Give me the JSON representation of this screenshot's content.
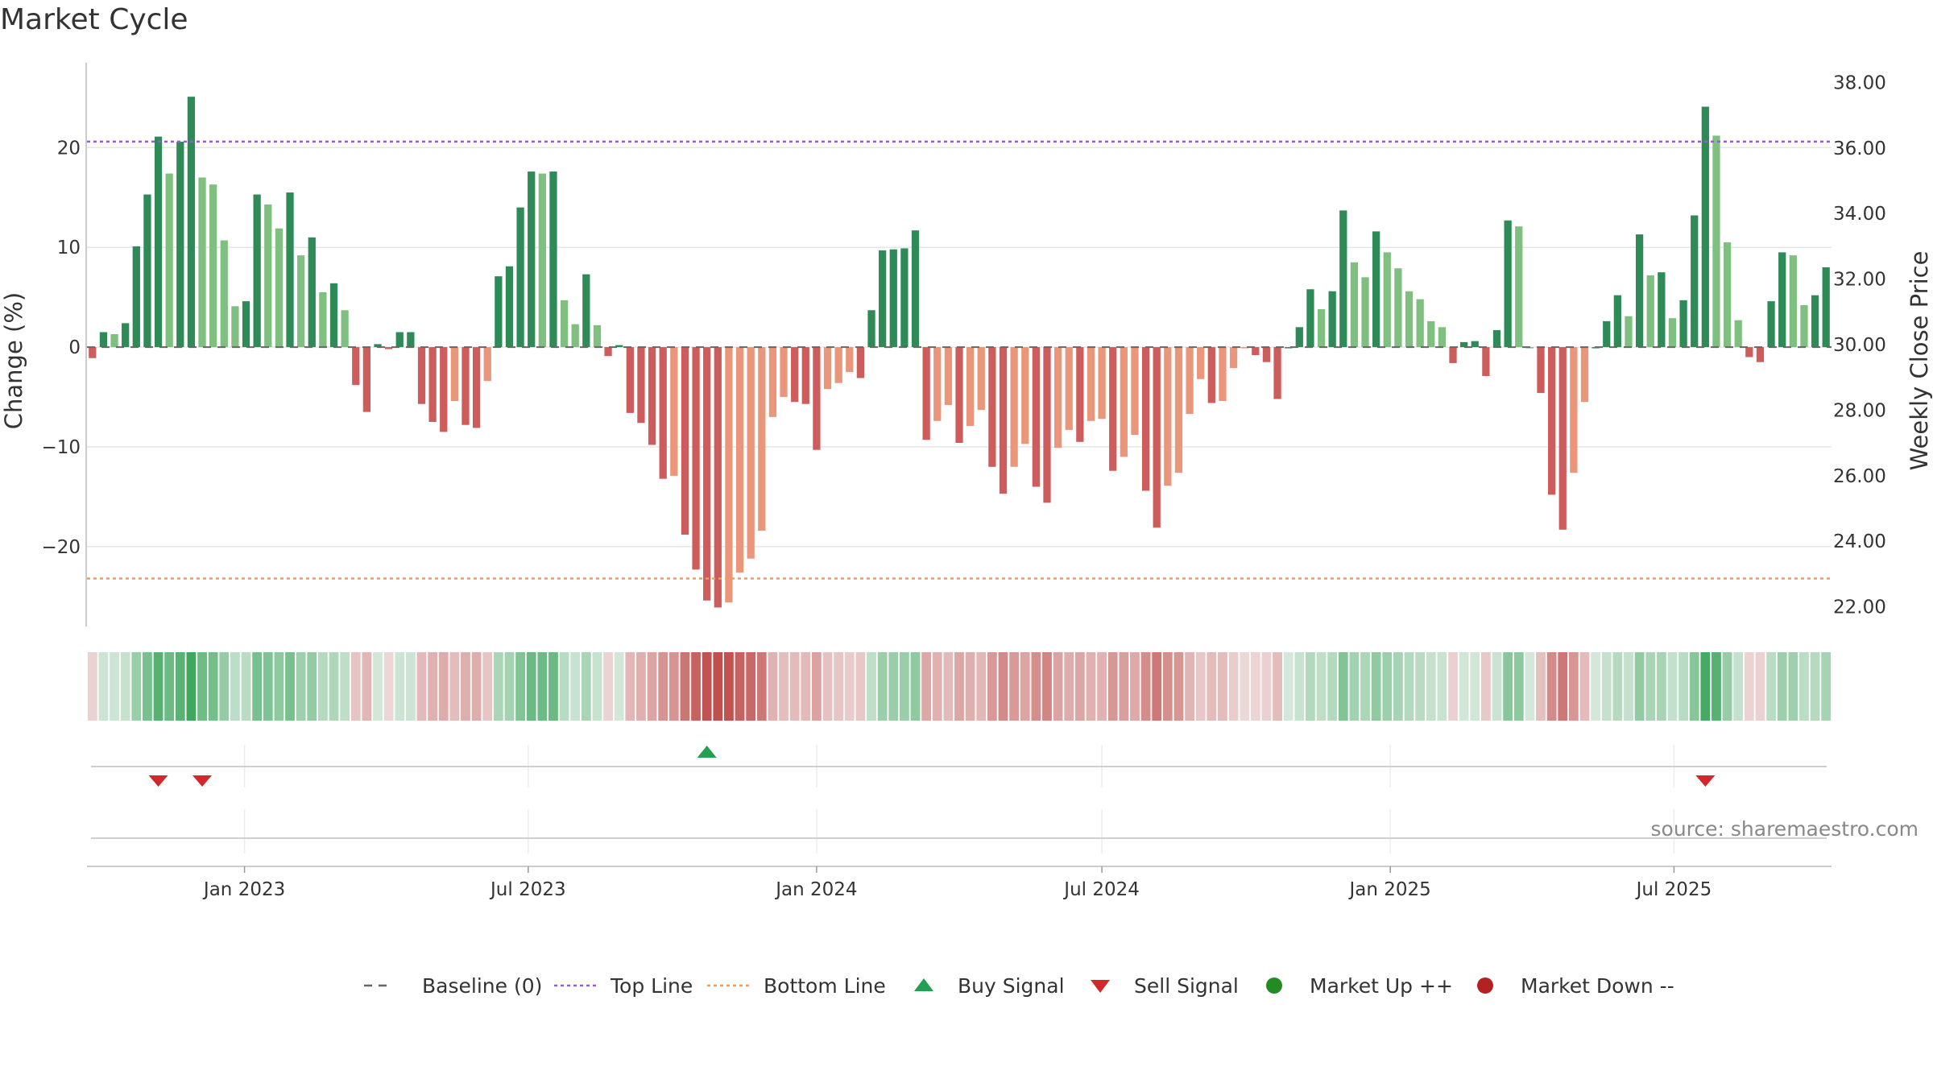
{
  "title": "Market Cycle",
  "source": "source: sharemaestro.com",
  "colors": {
    "up_strong": "#2e8b57",
    "up_light": "#7fbf7f",
    "down_strong": "#cd5c5c",
    "down_light": "#e9967a",
    "top_line": "#9b59d6",
    "bottom_line": "#e8a060",
    "baseline": "#666666",
    "buy": "#22a050",
    "sell": "#d62728",
    "market_up": "#228b22",
    "market_down": "#b22222"
  },
  "chart_data": {
    "type": "bar",
    "ylabel": "Change (%)",
    "y2label": "Weekly Close Price",
    "ylim": [
      -28,
      28.5
    ],
    "yticks": [
      20,
      10,
      0,
      -10,
      -20
    ],
    "ytick_labels": [
      "20",
      "10",
      "0",
      "−10",
      "−20"
    ],
    "y2lim": [
      21.4,
      38.6
    ],
    "y2ticks": [
      38,
      36,
      34,
      32,
      30,
      28,
      26,
      24,
      22
    ],
    "y2tick_labels": [
      "38.00",
      "36.00",
      "34.00",
      "32.00",
      "30.00",
      "28.00",
      "26.00",
      "24.00",
      "22.00"
    ],
    "top_line": 20.6,
    "bottom_line": -23.2,
    "baseline": 0,
    "x_start": "2022-09-26",
    "x_end": "2025-09-15",
    "xticks": [
      {
        "date": "2023-01-01",
        "label": "Jan 2023"
      },
      {
        "date": "2023-07-01",
        "label": "Jul 2023"
      },
      {
        "date": "2024-01-01",
        "label": "Jan 2024"
      },
      {
        "date": "2024-07-01",
        "label": "Jul 2024"
      },
      {
        "date": "2025-01-01",
        "label": "Jan 2025"
      },
      {
        "date": "2025-07-01",
        "label": "Jul 2025"
      }
    ],
    "weeks": [
      {
        "date": "2022-09-26",
        "value": -1.1
      },
      {
        "date": "2022-10-03",
        "value": 1.5
      },
      {
        "date": "2022-10-10",
        "value": 1.3
      },
      {
        "date": "2022-10-17",
        "value": 2.4
      },
      {
        "date": "2022-10-24",
        "value": 10.1
      },
      {
        "date": "2022-10-31",
        "value": 15.3
      },
      {
        "date": "2022-11-07",
        "value": 21.1
      },
      {
        "date": "2022-11-14",
        "value": 17.4
      },
      {
        "date": "2022-11-21",
        "value": 20.6
      },
      {
        "date": "2022-11-28",
        "value": 25.1
      },
      {
        "date": "2022-12-05",
        "value": 17.0
      },
      {
        "date": "2022-12-12",
        "value": 16.3
      },
      {
        "date": "2022-12-19",
        "value": 10.7
      },
      {
        "date": "2022-12-26",
        "value": 4.1
      },
      {
        "date": "2023-01-02",
        "value": 4.6
      },
      {
        "date": "2023-01-09",
        "value": 15.3
      },
      {
        "date": "2023-01-16",
        "value": 14.3
      },
      {
        "date": "2023-01-23",
        "value": 11.9
      },
      {
        "date": "2023-01-30",
        "value": 15.5
      },
      {
        "date": "2023-02-06",
        "value": 9.2
      },
      {
        "date": "2023-02-13",
        "value": 11.0
      },
      {
        "date": "2023-02-20",
        "value": 5.5
      },
      {
        "date": "2023-02-27",
        "value": 6.4
      },
      {
        "date": "2023-03-06",
        "value": 3.7
      },
      {
        "date": "2023-03-13",
        "value": -3.8
      },
      {
        "date": "2023-03-20",
        "value": -6.5
      },
      {
        "date": "2023-03-27",
        "value": 0.3
      },
      {
        "date": "2023-04-03",
        "value": -0.2
      },
      {
        "date": "2023-04-10",
        "value": 1.5
      },
      {
        "date": "2023-04-17",
        "value": 1.5
      },
      {
        "date": "2023-04-24",
        "value": -5.7
      },
      {
        "date": "2023-05-01",
        "value": -7.5
      },
      {
        "date": "2023-05-08",
        "value": -8.5
      },
      {
        "date": "2023-05-15",
        "value": -5.4
      },
      {
        "date": "2023-05-22",
        "value": -7.8
      },
      {
        "date": "2023-05-29",
        "value": -8.1
      },
      {
        "date": "2023-06-05",
        "value": -3.4
      },
      {
        "date": "2023-06-12",
        "value": 7.1
      },
      {
        "date": "2023-06-19",
        "value": 8.1
      },
      {
        "date": "2023-06-26",
        "value": 14.0
      },
      {
        "date": "2023-07-03",
        "value": 17.6
      },
      {
        "date": "2023-07-10",
        "value": 17.4
      },
      {
        "date": "2023-07-17",
        "value": 17.6
      },
      {
        "date": "2023-07-24",
        "value": 4.7
      },
      {
        "date": "2023-07-31",
        "value": 2.3
      },
      {
        "date": "2023-08-07",
        "value": 7.3
      },
      {
        "date": "2023-08-14",
        "value": 2.2
      },
      {
        "date": "2023-08-21",
        "value": -0.9
      },
      {
        "date": "2023-08-28",
        "value": 0.2
      },
      {
        "date": "2023-09-04",
        "value": -6.6
      },
      {
        "date": "2023-09-11",
        "value": -7.6
      },
      {
        "date": "2023-09-18",
        "value": -9.8
      },
      {
        "date": "2023-09-25",
        "value": -13.2
      },
      {
        "date": "2023-10-02",
        "value": -12.9
      },
      {
        "date": "2023-10-09",
        "value": -18.8
      },
      {
        "date": "2023-10-16",
        "value": -22.3
      },
      {
        "date": "2023-10-23",
        "value": -25.4
      },
      {
        "date": "2023-10-30",
        "value": -26.1
      },
      {
        "date": "2023-11-06",
        "value": -25.6
      },
      {
        "date": "2023-11-13",
        "value": -22.6
      },
      {
        "date": "2023-11-20",
        "value": -21.2
      },
      {
        "date": "2023-11-27",
        "value": -18.4
      },
      {
        "date": "2023-12-04",
        "value": -7.0
      },
      {
        "date": "2023-12-11",
        "value": -5.0
      },
      {
        "date": "2023-12-18",
        "value": -5.5
      },
      {
        "date": "2023-12-25",
        "value": -5.7
      },
      {
        "date": "2024-01-01",
        "value": -10.3
      },
      {
        "date": "2024-01-08",
        "value": -4.2
      },
      {
        "date": "2024-01-15",
        "value": -3.6
      },
      {
        "date": "2024-01-22",
        "value": -2.5
      },
      {
        "date": "2024-01-29",
        "value": -3.1
      },
      {
        "date": "2024-02-05",
        "value": 3.7
      },
      {
        "date": "2024-02-12",
        "value": 9.7
      },
      {
        "date": "2024-02-19",
        "value": 9.8
      },
      {
        "date": "2024-02-26",
        "value": 9.9
      },
      {
        "date": "2024-03-04",
        "value": 11.7
      },
      {
        "date": "2024-03-11",
        "value": -9.3
      },
      {
        "date": "2024-03-18",
        "value": -7.4
      },
      {
        "date": "2024-03-25",
        "value": -5.8
      },
      {
        "date": "2024-04-01",
        "value": -9.6
      },
      {
        "date": "2024-04-08",
        "value": -7.9
      },
      {
        "date": "2024-04-15",
        "value": -6.3
      },
      {
        "date": "2024-04-22",
        "value": -12.0
      },
      {
        "date": "2024-04-29",
        "value": -14.7
      },
      {
        "date": "2024-05-06",
        "value": -12.0
      },
      {
        "date": "2024-05-13",
        "value": -9.7
      },
      {
        "date": "2024-05-20",
        "value": -14.0
      },
      {
        "date": "2024-05-27",
        "value": -15.6
      },
      {
        "date": "2024-06-03",
        "value": -10.1
      },
      {
        "date": "2024-06-10",
        "value": -8.3
      },
      {
        "date": "2024-06-17",
        "value": -9.5
      },
      {
        "date": "2024-06-24",
        "value": -7.4
      },
      {
        "date": "2024-07-01",
        "value": -7.2
      },
      {
        "date": "2024-07-08",
        "value": -12.4
      },
      {
        "date": "2024-07-15",
        "value": -11.0
      },
      {
        "date": "2024-07-22",
        "value": -8.8
      },
      {
        "date": "2024-07-29",
        "value": -14.4
      },
      {
        "date": "2024-08-05",
        "value": -18.1
      },
      {
        "date": "2024-08-12",
        "value": -13.9
      },
      {
        "date": "2024-08-19",
        "value": -12.6
      },
      {
        "date": "2024-08-26",
        "value": -6.7
      },
      {
        "date": "2024-09-02",
        "value": -3.2
      },
      {
        "date": "2024-09-09",
        "value": -5.6
      },
      {
        "date": "2024-09-16",
        "value": -5.4
      },
      {
        "date": "2024-09-23",
        "value": -2.1
      },
      {
        "date": "2024-09-30",
        "value": -0.1
      },
      {
        "date": "2024-10-07",
        "value": -0.8
      },
      {
        "date": "2024-10-14",
        "value": -1.5
      },
      {
        "date": "2024-10-21",
        "value": -5.2
      },
      {
        "date": "2024-10-28",
        "value": 0.0
      },
      {
        "date": "2024-11-04",
        "value": 2.0
      },
      {
        "date": "2024-11-11",
        "value": 5.8
      },
      {
        "date": "2024-11-18",
        "value": 3.8
      },
      {
        "date": "2024-11-25",
        "value": 5.6
      },
      {
        "date": "2024-12-02",
        "value": 13.7
      },
      {
        "date": "2024-12-09",
        "value": 8.5
      },
      {
        "date": "2024-12-16",
        "value": 7.0
      },
      {
        "date": "2024-12-23",
        "value": 11.6
      },
      {
        "date": "2024-12-30",
        "value": 9.5
      },
      {
        "date": "2025-01-06",
        "value": 7.9
      },
      {
        "date": "2025-01-13",
        "value": 5.6
      },
      {
        "date": "2025-01-20",
        "value": 4.8
      },
      {
        "date": "2025-01-27",
        "value": 2.6
      },
      {
        "date": "2025-02-03",
        "value": 2.0
      },
      {
        "date": "2025-02-10",
        "value": -1.6
      },
      {
        "date": "2025-02-17",
        "value": 0.5
      },
      {
        "date": "2025-02-24",
        "value": 0.6
      },
      {
        "date": "2025-03-03",
        "value": -2.9
      },
      {
        "date": "2025-03-10",
        "value": 1.7
      },
      {
        "date": "2025-03-17",
        "value": 12.7
      },
      {
        "date": "2025-03-24",
        "value": 12.1
      },
      {
        "date": "2025-03-31",
        "value": 0.0
      },
      {
        "date": "2025-04-07",
        "value": -4.6
      },
      {
        "date": "2025-04-14",
        "value": -14.8
      },
      {
        "date": "2025-04-21",
        "value": -18.3
      },
      {
        "date": "2025-04-28",
        "value": -12.6
      },
      {
        "date": "2025-05-05",
        "value": -5.5
      },
      {
        "date": "2025-05-12",
        "value": 0.0
      },
      {
        "date": "2025-05-19",
        "value": 2.6
      },
      {
        "date": "2025-05-26",
        "value": 5.2
      },
      {
        "date": "2025-06-02",
        "value": 3.1
      },
      {
        "date": "2025-06-09",
        "value": 11.3
      },
      {
        "date": "2025-06-16",
        "value": 7.2
      },
      {
        "date": "2025-06-23",
        "value": 7.5
      },
      {
        "date": "2025-06-30",
        "value": 2.9
      },
      {
        "date": "2025-07-07",
        "value": 4.7
      },
      {
        "date": "2025-07-14",
        "value": 13.2
      },
      {
        "date": "2025-07-21",
        "value": 24.1
      },
      {
        "date": "2025-07-28",
        "value": 21.2
      },
      {
        "date": "2025-08-04",
        "value": 10.5
      },
      {
        "date": "2025-08-11",
        "value": 2.7
      },
      {
        "date": "2025-08-18",
        "value": -1.0
      },
      {
        "date": "2025-08-25",
        "value": -1.5
      },
      {
        "date": "2025-09-01",
        "value": 4.6
      },
      {
        "date": "2025-09-08",
        "value": 9.5
      },
      {
        "date": "2025-09-15",
        "value": 9.2
      },
      {
        "date": "2025-09-22",
        "value": 4.2
      },
      {
        "date": "2025-09-29",
        "value": 5.2
      },
      {
        "date": "2025-10-06",
        "value": 8.0
      }
    ],
    "buy_signals": [
      "2023-10-23"
    ],
    "sell_signals": [
      "2022-11-07",
      "2022-12-05",
      "2025-07-21"
    ],
    "legend": [
      {
        "label": "Baseline (0)",
        "marker": "dash",
        "color": "#666666"
      },
      {
        "label": "Top Line",
        "marker": "dotted",
        "color": "#9b59d6"
      },
      {
        "label": "Bottom Line",
        "marker": "dotted",
        "color": "#e8a060"
      },
      {
        "label": "Buy Signal",
        "marker": "triangle-up",
        "color": "#22a050"
      },
      {
        "label": "Sell Signal",
        "marker": "triangle-down",
        "color": "#d62728"
      },
      {
        "label": "Market Up ++",
        "marker": "circle",
        "color": "#228b22"
      },
      {
        "label": "Market Down --",
        "marker": "circle",
        "color": "#b22222"
      }
    ]
  }
}
